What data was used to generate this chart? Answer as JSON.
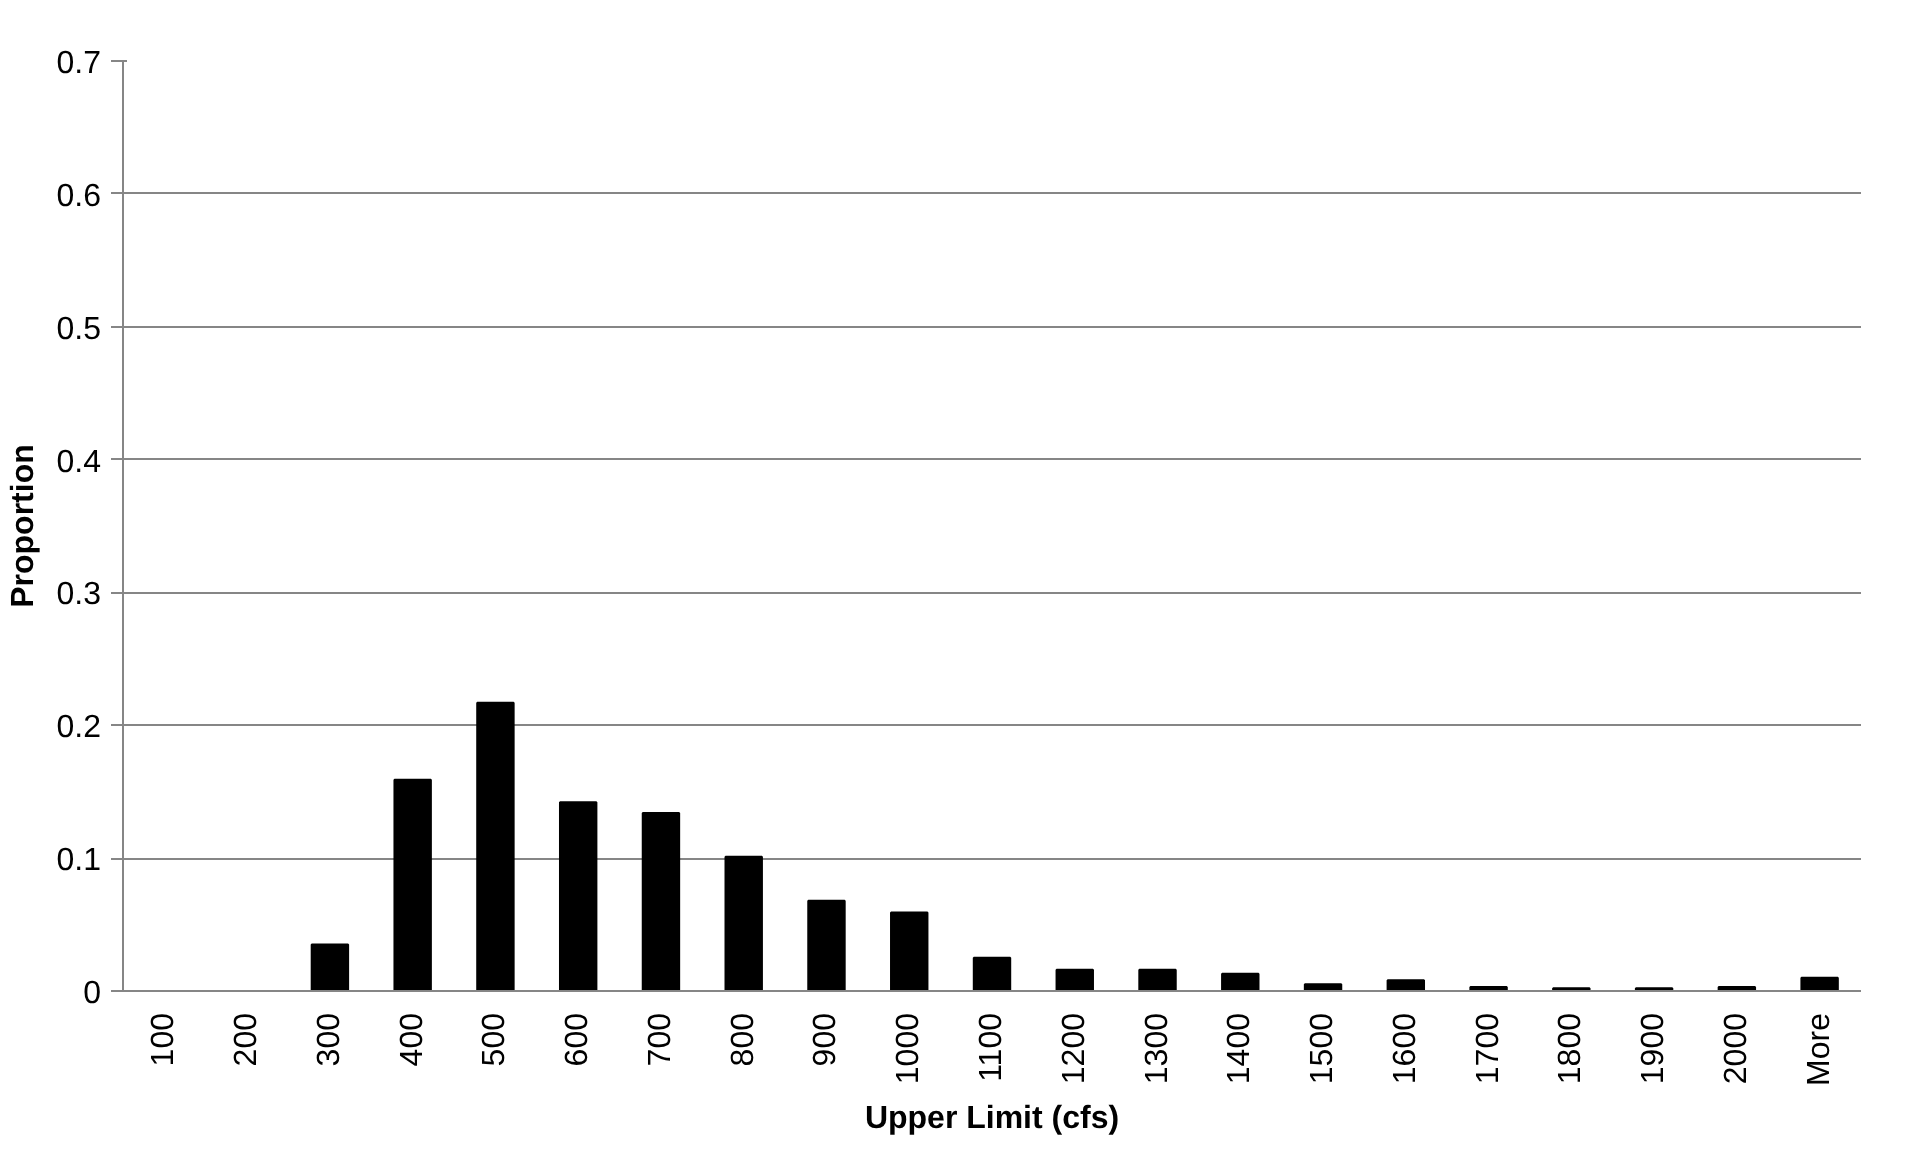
{
  "chart_data": {
    "type": "bar",
    "xlabel": "Upper Limit (cfs)",
    "ylabel": "Proportion",
    "categories": [
      "100",
      "200",
      "300",
      "400",
      "500",
      "600",
      "700",
      "800",
      "900",
      "1000",
      "1100",
      "1200",
      "1300",
      "1400",
      "1500",
      "1600",
      "1700",
      "1800",
      "1900",
      "2000",
      "More"
    ],
    "values": [
      0,
      0,
      0.035,
      0.159,
      0.217,
      0.142,
      0.134,
      0.101,
      0.068,
      0.059,
      0.025,
      0.016,
      0.016,
      0.013,
      0.005,
      0.008,
      0.003,
      0.002,
      0.002,
      0.003,
      0.01
    ],
    "color": "#000000",
    "ylim": [
      0,
      0.7
    ],
    "yticks": [
      0,
      0.1,
      0.2,
      0.3,
      0.4,
      0.5,
      0.6,
      0.7
    ],
    "grid": "y"
  }
}
